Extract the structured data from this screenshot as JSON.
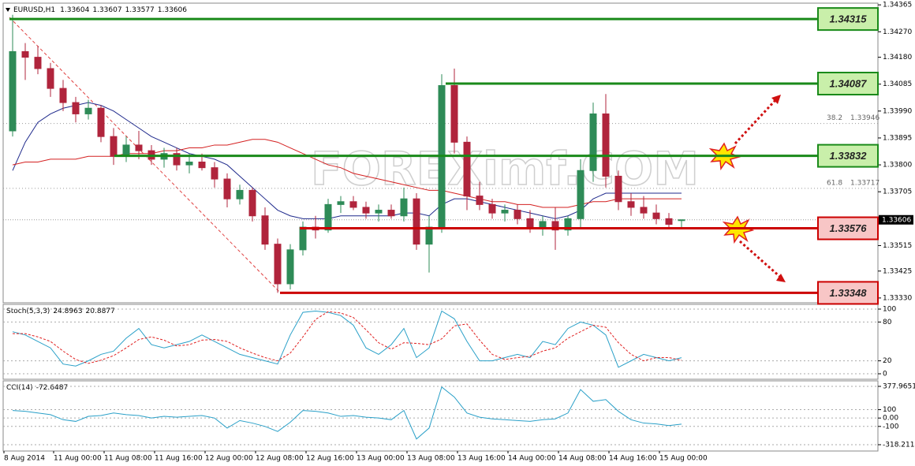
{
  "watermark": "FOREXimf.COM",
  "chart_data": [
    {
      "type": "candlestick",
      "title": "EURUSD,H1",
      "categories": [
        "8 Aug 2014",
        null,
        null,
        null,
        null,
        "11 Aug 00:00",
        null,
        null,
        null,
        "11 Aug 08:00",
        null,
        null,
        null,
        "11 Aug 16:00",
        null,
        null,
        null,
        "12 Aug 00:00",
        null,
        null,
        null,
        "12 Aug 08:00",
        null,
        null,
        null,
        "12 Aug 16:00",
        null,
        null,
        null,
        "13 Aug 00:00",
        null,
        null,
        null,
        "13 Aug 08:00",
        null,
        null,
        null,
        "13 Aug 16:00",
        null,
        null,
        null,
        "14 Aug 00:00",
        null,
        null,
        null,
        "14 Aug 08:00",
        null,
        null,
        null,
        "14 Aug 16:00",
        null,
        null,
        null,
        "15 Aug 00:00"
      ],
      "open": [
        1.3392,
        1.342,
        1.3418,
        1.3414,
        1.3407,
        1.3402,
        1.3398,
        1.34,
        1.339,
        1.3383,
        1.3387,
        1.3385,
        1.3382,
        1.3384,
        1.338,
        1.3381,
        1.3379,
        1.3375,
        1.3368,
        1.3371,
        1.3362,
        1.3352,
        1.3338,
        1.335,
        1.3358,
        1.3357,
        1.3366,
        1.3367,
        1.3365,
        1.3363,
        1.3364,
        1.3362,
        1.3368,
        1.3352,
        1.3358,
        1.3408,
        1.3388,
        1.3369,
        1.3366,
        1.3363,
        1.3364,
        1.3361,
        1.3358,
        1.336,
        1.3357,
        1.3361,
        1.3378,
        1.3398,
        1.3376,
        1.3367,
        1.3365,
        1.3363,
        1.3361,
        1.33604
      ],
      "high": [
        1.3433,
        1.3423,
        1.3422,
        1.3416,
        1.341,
        1.3404,
        1.3403,
        1.3401,
        1.3393,
        1.339,
        1.3392,
        1.3387,
        1.3386,
        1.3386,
        1.3384,
        1.3384,
        1.3381,
        1.3377,
        1.3373,
        1.3372,
        1.3365,
        1.3354,
        1.3352,
        1.336,
        1.3362,
        1.3368,
        1.3369,
        1.3369,
        1.3367,
        1.3366,
        1.3366,
        1.3372,
        1.337,
        1.3362,
        1.3412,
        1.3414,
        1.339,
        1.3374,
        1.3368,
        1.3366,
        1.3366,
        1.3364,
        1.3362,
        1.3365,
        1.3362,
        1.3382,
        1.3402,
        1.3405,
        1.3378,
        1.337,
        1.3369,
        1.3366,
        1.3363,
        1.33607
      ],
      "low": [
        1.339,
        1.341,
        1.3412,
        1.3404,
        1.3399,
        1.3395,
        1.3396,
        1.3388,
        1.338,
        1.3381,
        1.3382,
        1.338,
        1.3379,
        1.3378,
        1.3377,
        1.3378,
        1.3372,
        1.3365,
        1.3366,
        1.336,
        1.335,
        1.33348,
        1.3336,
        1.3348,
        1.3354,
        1.3356,
        1.3363,
        1.3364,
        1.3361,
        1.336,
        1.3361,
        1.336,
        1.335,
        1.3342,
        1.3356,
        1.3384,
        1.3364,
        1.3364,
        1.3361,
        1.336,
        1.3359,
        1.3356,
        1.3355,
        1.335,
        1.3355,
        1.3358,
        1.3374,
        1.3372,
        1.3364,
        1.3362,
        1.3361,
        1.3359,
        1.3358,
        1.33577
      ],
      "close": [
        1.342,
        1.3418,
        1.3414,
        1.3407,
        1.3402,
        1.3398,
        1.34,
        1.339,
        1.3383,
        1.3387,
        1.3385,
        1.3382,
        1.3384,
        1.338,
        1.3381,
        1.3379,
        1.3375,
        1.3368,
        1.3371,
        1.3362,
        1.3352,
        1.3338,
        1.335,
        1.3358,
        1.3357,
        1.3366,
        1.3367,
        1.3365,
        1.3363,
        1.3364,
        1.3362,
        1.3368,
        1.3352,
        1.3358,
        1.3408,
        1.3388,
        1.3369,
        1.3366,
        1.3363,
        1.3364,
        1.3361,
        1.3358,
        1.336,
        1.3357,
        1.3361,
        1.3378,
        1.3398,
        1.3376,
        1.3367,
        1.3365,
        1.3363,
        1.3361,
        1.3359,
        1.33606
      ],
      "up_color": "#2e8b57",
      "down_color": "#b0243c",
      "series": [
        {
          "color": "#1f2a8c",
          "values": [
            1.3378,
            1.3388,
            1.3395,
            1.3398,
            1.34,
            1.3401,
            1.3402,
            1.3401,
            1.3399,
            1.3396,
            1.3393,
            1.339,
            1.3388,
            1.3386,
            1.3384,
            1.3383,
            1.3382,
            1.338,
            1.3376,
            1.3372,
            1.3368,
            1.3364,
            1.3362,
            1.3361,
            1.3361,
            1.3361,
            1.3362,
            1.3362,
            1.3362,
            1.3362,
            1.3362,
            1.3363,
            1.3363,
            1.3362,
            1.3366,
            1.3368,
            1.3368,
            1.3367,
            1.3366,
            1.3365,
            1.3364,
            1.3363,
            1.3362,
            1.3361,
            1.3362,
            1.3364,
            1.3368,
            1.337,
            1.337,
            1.337,
            1.337,
            1.337,
            1.337,
            1.337
          ]
        },
        {
          "color": "#d42020",
          "values": [
            1.338,
            1.3381,
            1.3381,
            1.3382,
            1.3382,
            1.3382,
            1.3383,
            1.3383,
            1.3383,
            1.3384,
            1.3384,
            1.3384,
            1.3385,
            1.3385,
            1.3386,
            1.3386,
            1.3387,
            1.3387,
            1.3388,
            1.3389,
            1.3389,
            1.3388,
            1.3386,
            1.3384,
            1.3382,
            1.338,
            1.3379,
            1.3377,
            1.3376,
            1.3375,
            1.3374,
            1.3373,
            1.3372,
            1.3371,
            1.3371,
            1.337,
            1.3369,
            1.3368,
            1.3367,
            1.3367,
            1.3366,
            1.3366,
            1.3365,
            1.3365,
            1.3365,
            1.3366,
            1.3367,
            1.3367,
            1.3368,
            1.3368,
            1.3368,
            1.3368,
            1.3368,
            1.3368
          ]
        }
      ],
      "ylim": [
        1.33313,
        1.34371
      ],
      "yticks": [
        1.34365,
        {
          "value": 1.3427,
          "label": "1.34270"
        },
        {
          "value": 1.3418,
          "label": "1.34180"
        },
        1.34085,
        {
          "value": 1.3399,
          "label": "1.33990"
        },
        1.33895,
        {
          "value": 1.338,
          "label": "1.33800"
        },
        1.33705,
        1.33515,
        1.33425,
        {
          "value": 1.3333,
          "label": "1.33330"
        }
      ],
      "levels": [
        {
          "value": 1.34315,
          "color": "#1a8a1a",
          "fill": "#c9efaa"
        },
        {
          "value": 1.34087,
          "color": "#1a8a1a",
          "fill": "#c9efaa"
        },
        {
          "value": 1.33832,
          "color": "#1a8a1a",
          "fill": "#c9efaa"
        },
        {
          "value": 1.33576,
          "color": "#cc0000",
          "fill": "#f8c6c6"
        },
        {
          "value": 1.33348,
          "color": "#cc0000",
          "fill": "#f8c6c6"
        }
      ],
      "fibo": [
        {
          "label": "38.2",
          "value": 1.33946
        },
        {
          "label": "61.8",
          "value": 1.33717
        }
      ]
    },
    {
      "type": "line",
      "title": "Stoch(5,3,3)",
      "series": [
        {
          "color": "#2aa0c8",
          "values": [
            65,
            60,
            50,
            40,
            15,
            12,
            20,
            30,
            35,
            55,
            70,
            45,
            40,
            45,
            50,
            60,
            50,
            40,
            30,
            25,
            20,
            15,
            60,
            95,
            97,
            95,
            90,
            75,
            40,
            30,
            45,
            70,
            25,
            40,
            97,
            85,
            50,
            20,
            20,
            25,
            30,
            25,
            50,
            45,
            70,
            80,
            75,
            60,
            10,
            20,
            30,
            25,
            20,
            24.8963
          ]
        },
        {
          "color": "#e02020",
          "dashed": true,
          "values": [
            62,
            62,
            57,
            50,
            35,
            22,
            16,
            21,
            28,
            40,
            53,
            57,
            52,
            43,
            45,
            52,
            53,
            50,
            40,
            32,
            25,
            20,
            32,
            57,
            84,
            96,
            94,
            87,
            68,
            48,
            38,
            48,
            47,
            45,
            54,
            74,
            77,
            52,
            30,
            22,
            25,
            27,
            35,
            40,
            55,
            65,
            75,
            72,
            48,
            30,
            20,
            25,
            25,
            20.8877
          ]
        }
      ],
      "ylim": [
        -8.5,
        107.3
      ],
      "yticks": [
        100,
        80,
        20,
        0
      ],
      "grid": true
    },
    {
      "type": "line",
      "title": "CCI(14)",
      "series": [
        {
          "color": "#2aa0c8",
          "values": [
            90,
            80,
            60,
            40,
            -20,
            -40,
            20,
            30,
            60,
            40,
            30,
            0,
            20,
            10,
            20,
            30,
            0,
            -120,
            -30,
            -60,
            -100,
            -160,
            -50,
            90,
            80,
            60,
            20,
            30,
            10,
            0,
            -20,
            90,
            -250,
            -120,
            370,
            250,
            60,
            10,
            -10,
            -20,
            -30,
            -40,
            -20,
            -10,
            60,
            340,
            200,
            220,
            80,
            -20,
            -60,
            -70,
            -90,
            -72.6487
          ]
        }
      ],
      "ylim": [
        -393.5,
        443.8
      ],
      "yticks": [
        377.9651,
        100,
        {
          "value": 0,
          "label": "0.00"
        },
        -100,
        -318.2114
      ],
      "grid": true
    }
  ]
}
